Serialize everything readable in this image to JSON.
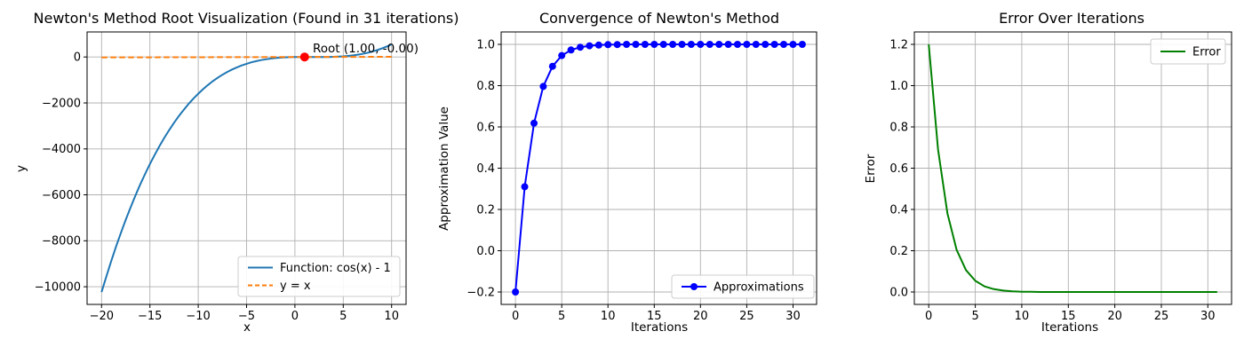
{
  "figure": {
    "background": "#ffffff",
    "grid_color": "#b0b0b0",
    "spine_color": "#000000",
    "text_color": "#000000",
    "legend_border_color": "#cccccc"
  },
  "chart_data": [
    {
      "id": "newton_root",
      "type": "line",
      "title": "Newton's Method Root Visualization (Found in 31 iterations)",
      "xlabel": "x",
      "ylabel": "y",
      "xlim": [
        -21.5,
        11.5
      ],
      "ylim": [
        -10770,
        1090
      ],
      "grid": true,
      "legend_loc": "lower right",
      "xticks": {
        "values": [
          -20,
          -15,
          -10,
          -5,
          0,
          5,
          10
        ],
        "labels": [
          "−20",
          "−15",
          "−10",
          "−5",
          "0",
          "5",
          "10"
        ]
      },
      "yticks": {
        "values": [
          0,
          -2000,
          -4000,
          -6000,
          -8000,
          -10000
        ],
        "labels": [
          "0",
          "−2000",
          "−4000",
          "−6000",
          "−8000",
          "−10000"
        ]
      },
      "series": [
        {
          "name": "Function: cos(x) - 1",
          "color": "#1f77b4",
          "dashed": false,
          "marker": false,
          "x": [
            -20,
            -19.5,
            -19,
            -18.5,
            -18,
            -17.5,
            -17,
            -16.5,
            -16,
            -15.5,
            -15,
            -14.5,
            -14,
            -13.5,
            -13,
            -12.5,
            -12,
            -11.5,
            -11,
            -10.5,
            -10,
            -9.5,
            -9,
            -8.5,
            -8,
            -7.5,
            -7,
            -6.5,
            -6,
            -5.5,
            -5,
            -4.5,
            -4,
            -3.5,
            -3,
            -2.5,
            -2,
            -1.5,
            -1,
            -0.5,
            0,
            0.5,
            1,
            1.5,
            2,
            2.5,
            3,
            3.5,
            4,
            4.5,
            5,
            5.5,
            6,
            6.5,
            7,
            7.5,
            8,
            8.5,
            9,
            9.5,
            10
          ],
          "y": [
            -10231.2,
            -9539.7,
            -8880,
            -8251.4,
            -7653.2,
            -7084.6,
            -6544.8,
            -6033.1,
            -5548.8,
            -5091.1,
            -4659.2,
            -4252.4,
            -3870,
            -3511.2,
            -3175.2,
            -2861.3,
            -2568.8,
            -2296.9,
            -2044.8,
            -1811.8,
            -1597.2,
            -1400.2,
            -1220,
            -1055.9,
            -907.2,
            -773.1,
            -652.8,
            -545.6,
            -450.8,
            -367.6,
            -295.2,
            -232.9,
            -180,
            -135.7,
            -99.2,
            -69.8,
            -46.8,
            -29.4,
            -16.8,
            -8.3,
            -3.2,
            -0.7,
            0,
            -0.4,
            -1.2,
            -1.6,
            -0.8,
            1.9,
            7.2,
            15.9,
            28.8,
            46.6,
            70,
            99.8,
            136.8,
            181.7,
            235.2,
            298.1,
            371.2,
            455.2,
            550.8
          ]
        },
        {
          "name": "y = x",
          "color": "#ff7f0e",
          "dashed": true,
          "marker": false,
          "x": [
            -20,
            10
          ],
          "y": [
            -20,
            10
          ]
        }
      ],
      "annotation": {
        "text": "Root (1.00, -0.00)",
        "x": 1.0,
        "y": 0.0,
        "marker_color": "#ff0000"
      }
    },
    {
      "id": "convergence",
      "type": "line",
      "title": "Convergence of Newton's Method",
      "xlabel": "Iterations",
      "ylabel": "Approximation Value",
      "xlim": [
        -1.55,
        32.55
      ],
      "ylim": [
        -0.26,
        1.06
      ],
      "grid": true,
      "legend_loc": "lower right",
      "xticks": {
        "values": [
          0,
          5,
          10,
          15,
          20,
          25,
          30
        ],
        "labels": [
          "0",
          "5",
          "10",
          "15",
          "20",
          "25",
          "30"
        ]
      },
      "yticks": {
        "values": [
          -0.2,
          0.0,
          0.2,
          0.4,
          0.6,
          0.8,
          1.0
        ],
        "labels": [
          "−0.2",
          "0.0",
          "0.2",
          "0.4",
          "0.6",
          "0.8",
          "1.0"
        ]
      },
      "series": [
        {
          "name": "Approximations",
          "color": "#0000ff",
          "dashed": false,
          "marker": true,
          "x": [
            0,
            1,
            2,
            3,
            4,
            5,
            6,
            7,
            8,
            9,
            10,
            11,
            12,
            13,
            14,
            15,
            16,
            17,
            18,
            19,
            20,
            21,
            22,
            23,
            24,
            25,
            26,
            27,
            28,
            29,
            30,
            31
          ],
          "y": [
            -0.2,
            0.31,
            0.618,
            0.7958,
            0.8937,
            0.9458,
            0.9726,
            0.9862,
            0.9931,
            0.9965,
            0.9983,
            0.9991,
            0.9996,
            0.9998,
            0.9999,
            0.99995,
            0.99997,
            0.99999,
            0.99999,
            1,
            1,
            1,
            1,
            1,
            1,
            1,
            1,
            1,
            1,
            1,
            1,
            1
          ]
        }
      ]
    },
    {
      "id": "error",
      "type": "line",
      "title": "Error Over Iterations",
      "xlabel": "Iterations",
      "ylabel": "Error",
      "xlim": [
        -1.55,
        32.55
      ],
      "ylim": [
        -0.06,
        1.26
      ],
      "grid": true,
      "legend_loc": "upper right",
      "xticks": {
        "values": [
          0,
          5,
          10,
          15,
          20,
          25,
          30
        ],
        "labels": [
          "0",
          "5",
          "10",
          "15",
          "20",
          "25",
          "30"
        ]
      },
      "yticks": {
        "values": [
          0.0,
          0.2,
          0.4,
          0.6,
          0.8,
          1.0,
          1.2
        ],
        "labels": [
          "0.0",
          "0.2",
          "0.4",
          "0.6",
          "0.8",
          "1.0",
          "1.2"
        ]
      },
      "series": [
        {
          "name": "Error",
          "color": "#008000",
          "dashed": false,
          "marker": false,
          "x": [
            0,
            1,
            2,
            3,
            4,
            5,
            6,
            7,
            8,
            9,
            10,
            11,
            12,
            13,
            14,
            15,
            16,
            17,
            18,
            19,
            20,
            21,
            22,
            23,
            24,
            25,
            26,
            27,
            28,
            29,
            30,
            31
          ],
          "y": [
            1.2,
            0.69,
            0.382,
            0.2042,
            0.1063,
            0.0542,
            0.0274,
            0.0138,
            0.0069,
            0.0035,
            0.0017,
            0.0009,
            0.0004,
            0.0002,
            0.0001,
            5e-05,
            3e-05,
            1e-05,
            1e-05,
            0,
            0,
            0,
            0,
            0,
            0,
            0,
            0,
            0,
            0,
            0,
            0,
            0
          ]
        }
      ]
    }
  ]
}
